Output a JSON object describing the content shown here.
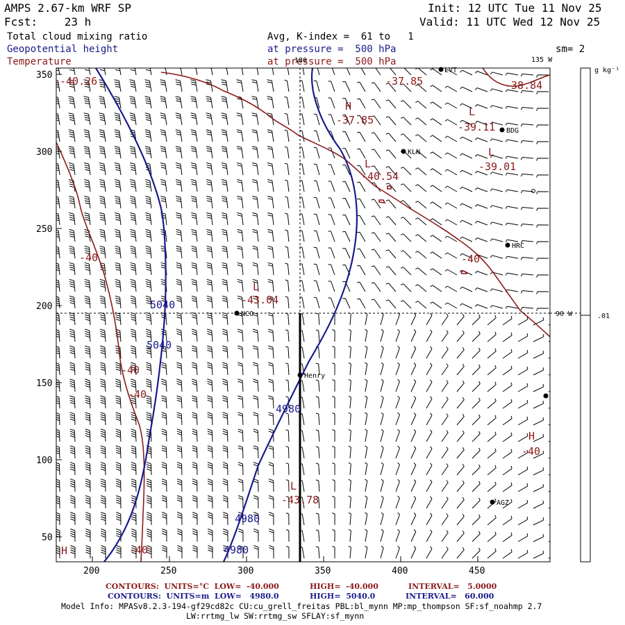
{
  "header": {
    "model": "AMPS 2.67-km WRF SP",
    "forecast": "Fcst:    23 h",
    "init": "Init: 12 UTC Tue 11 Nov 25",
    "valid": "Valid: 11 UTC Wed 12 Nov 25",
    "field1": "Total cloud mixing ratio",
    "field1_desc": "Avg, K-index =  61 to   1",
    "field2": "Geopotential height",
    "field2_desc": "at pressure =  500 hPa",
    "field3": "Temperature",
    "field3_desc": "at pressure =  500 hPa",
    "smoothing": "sm= 2"
  },
  "axes": {
    "x_ticks": [
      "200",
      "250",
      "300",
      "350",
      "400",
      "450"
    ],
    "y_ticks": [
      "350",
      "300",
      "250",
      "200",
      "150",
      "100",
      "50"
    ],
    "lon_top_label": "180",
    "lon_right_top": "135 W",
    "lon_right_mid": "90 W"
  },
  "colorbar": {
    "units": "g kg⁻¹",
    "tick": ".01"
  },
  "stations": [
    {
      "name": "LVT"
    },
    {
      "name": "BDG"
    },
    {
      "name": "KLN"
    },
    {
      "name": "HRC"
    },
    {
      "name": "NCO"
    },
    {
      "name": "Henry"
    },
    {
      "name": "AGZ"
    }
  ],
  "temp_labels": [
    "-40.26",
    "-37.85",
    "-38.84",
    "H",
    "-37.85",
    "L",
    "-39.11",
    "L",
    "-39.01",
    "L",
    "-40.54",
    "-40",
    "-40",
    "L",
    "-43.04",
    "-40",
    "-40",
    "H",
    "-40",
    "L",
    "-43.78",
    "H",
    "-40"
  ],
  "height_labels": [
    "5040",
    "5040",
    "4980",
    "4980",
    "4980"
  ],
  "footer": {
    "line1a": "CONTOURS:  UNITS=°C  LOW=  -40.000",
    "line1b": "HIGH=  -40.000",
    "line1c": "INTERVAL=   5.0000",
    "line2a": "CONTOURS:  UNITS=m  LOW=   4980.0",
    "line2b": "HIGH=  5040.0",
    "line2c": "INTERVAL=   60.000",
    "model_info": "Model Info: MPASv8.2.3-194-gf29cd82c CU:cu_grell_freitas PBL:bl_mynn MP:mp_thompson SF:sf_noahmp 2.7",
    "model_info2": "LW:rrtmg_lw SW:rrtmg_sw SFLAY:sf_mynn"
  }
}
